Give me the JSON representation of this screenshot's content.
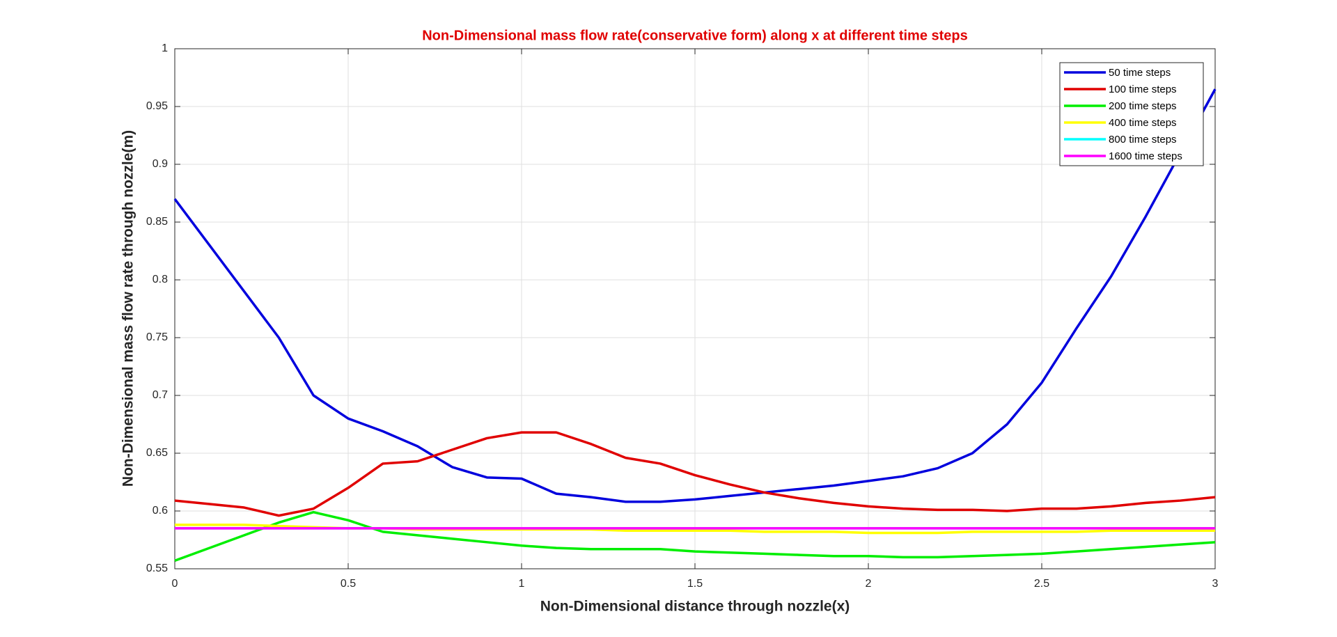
{
  "chart_data": {
    "type": "line",
    "title": "Non-Dimensional mass flow rate(conservative form) along x at different time steps",
    "xlabel": "Non-Dimensional distance through nozzle(x)",
    "ylabel": "Non-Dimensional mass flow rate through nozzle(m)",
    "x": [
      0,
      0.1,
      0.2,
      0.3,
      0.4,
      0.5,
      0.6,
      0.7,
      0.8,
      0.9,
      1,
      1.1,
      1.2,
      1.3,
      1.4,
      1.5,
      1.6,
      1.7,
      1.8,
      1.9,
      2,
      2.1,
      2.2,
      2.3,
      2.4,
      2.5,
      2.6,
      2.7,
      2.8,
      2.9,
      3
    ],
    "series": [
      {
        "name": "50 time steps",
        "color": "#0000dd",
        "values": [
          0.87,
          0.83,
          0.79,
          0.75,
          0.7,
          0.68,
          0.669,
          0.656,
          0.638,
          0.629,
          0.628,
          0.615,
          0.612,
          0.608,
          0.608,
          0.61,
          0.613,
          0.616,
          0.619,
          0.622,
          0.626,
          0.63,
          0.637,
          0.65,
          0.675,
          0.711,
          0.758,
          0.803,
          0.855,
          0.91,
          0.965
        ]
      },
      {
        "name": "100 time steps",
        "color": "#e00000",
        "values": [
          0.609,
          0.606,
          0.603,
          0.596,
          0.602,
          0.62,
          0.641,
          0.643,
          0.653,
          0.663,
          0.668,
          0.668,
          0.658,
          0.646,
          0.641,
          0.631,
          0.623,
          0.616,
          0.611,
          0.607,
          0.604,
          0.602,
          0.601,
          0.601,
          0.6,
          0.602,
          0.602,
          0.604,
          0.607,
          0.609,
          0.612
        ]
      },
      {
        "name": "200 time steps",
        "color": "#00ee00",
        "values": [
          0.557,
          0.568,
          0.579,
          0.59,
          0.599,
          0.592,
          0.582,
          0.579,
          0.576,
          0.573,
          0.57,
          0.568,
          0.567,
          0.567,
          0.567,
          0.565,
          0.564,
          0.563,
          0.562,
          0.561,
          0.561,
          0.56,
          0.56,
          0.561,
          0.562,
          0.563,
          0.565,
          0.567,
          0.569,
          0.571,
          0.573
        ]
      },
      {
        "name": "400 time steps",
        "color": "#ffff00",
        "values": [
          0.588,
          0.588,
          0.588,
          0.587,
          0.586,
          0.585,
          0.585,
          0.584,
          0.584,
          0.584,
          0.584,
          0.584,
          0.584,
          0.583,
          0.583,
          0.583,
          0.583,
          0.582,
          0.582,
          0.582,
          0.581,
          0.581,
          0.581,
          0.582,
          0.582,
          0.582,
          0.582,
          0.583,
          0.583,
          0.583,
          0.583
        ]
      },
      {
        "name": "800 time steps",
        "color": "#00ffff",
        "values": [
          0.585,
          0.585,
          0.585,
          0.585,
          0.585,
          0.585,
          0.585,
          0.585,
          0.585,
          0.585,
          0.585,
          0.585,
          0.585,
          0.585,
          0.585,
          0.585,
          0.585,
          0.585,
          0.585,
          0.585,
          0.585,
          0.585,
          0.585,
          0.585,
          0.585,
          0.585,
          0.585,
          0.585,
          0.585,
          0.585,
          0.585
        ]
      },
      {
        "name": "1600 time steps",
        "color": "#ff00ff",
        "values": [
          0.585,
          0.585,
          0.585,
          0.585,
          0.585,
          0.585,
          0.585,
          0.585,
          0.585,
          0.585,
          0.585,
          0.585,
          0.585,
          0.585,
          0.585,
          0.585,
          0.585,
          0.585,
          0.585,
          0.585,
          0.585,
          0.585,
          0.585,
          0.585,
          0.585,
          0.585,
          0.585,
          0.585,
          0.585,
          0.585,
          0.585
        ]
      }
    ],
    "xlim": [
      0,
      3
    ],
    "xticks": [
      0,
      0.5,
      1,
      1.5,
      2,
      2.5,
      3
    ],
    "ylim": [
      0.55,
      1
    ],
    "yticks": [
      0.55,
      0.6,
      0.65,
      0.7,
      0.75,
      0.8,
      0.85,
      0.9,
      0.95,
      1
    ],
    "grid": true,
    "legend": "upper right"
  }
}
